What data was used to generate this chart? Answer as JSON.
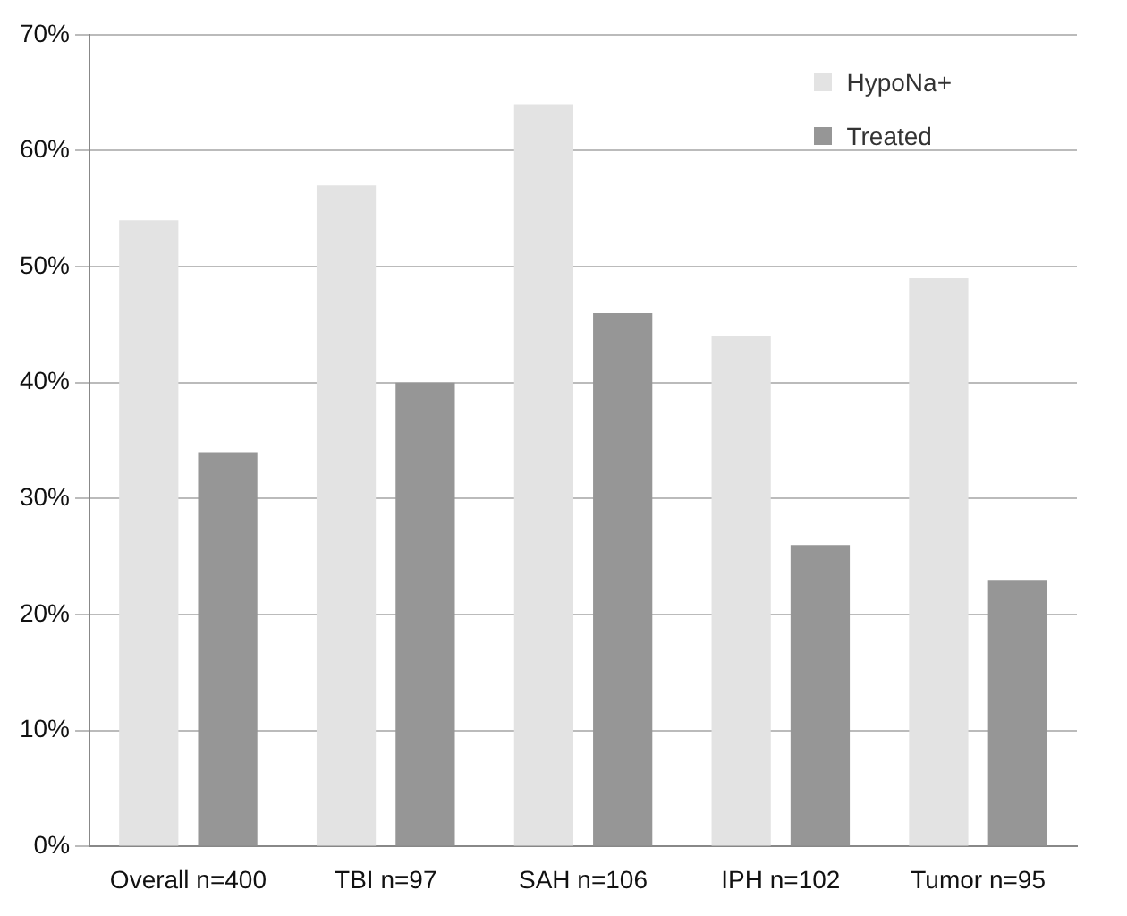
{
  "chart_data": {
    "type": "bar",
    "categories": [
      "Overall n=400",
      "TBI n=97",
      "SAH n=106",
      "IPH n=102",
      "Tumor n=95"
    ],
    "series": [
      {
        "name": "HypoNa+",
        "color": "#e3e3e3",
        "values": [
          54,
          57,
          64,
          44,
          49
        ]
      },
      {
        "name": "Treated",
        "color": "#969696",
        "values": [
          34,
          40,
          46,
          26,
          23
        ]
      }
    ],
    "ylim": [
      0,
      70
    ],
    "yticks": [
      {
        "value": 0,
        "label": "0%"
      },
      {
        "value": 10,
        "label": "10%"
      },
      {
        "value": 20,
        "label": "20%"
      },
      {
        "value": 30,
        "label": "30%"
      },
      {
        "value": 40,
        "label": "40%"
      },
      {
        "value": 50,
        "label": "50%"
      },
      {
        "value": 60,
        "label": "60%"
      },
      {
        "value": 70,
        "label": "70%"
      }
    ],
    "grid": "y",
    "legend": "top right"
  }
}
